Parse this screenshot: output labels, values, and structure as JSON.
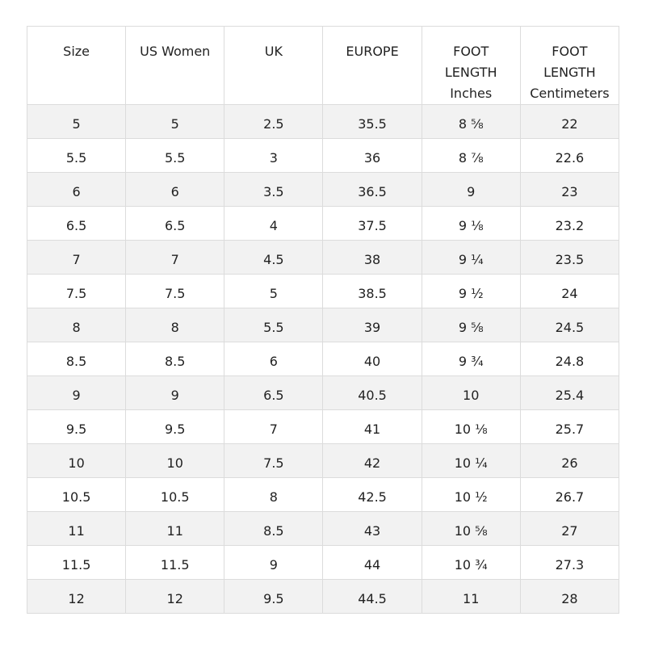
{
  "table": {
    "header": [
      "Size",
      "US Women",
      "UK",
      "EUROPE",
      "FOOT LENGTH Inches",
      "FOOT LENGTH Centimeters"
    ],
    "rows": [
      [
        "5",
        "5",
        "2.5",
        "35.5",
        "8 ⅝",
        "22"
      ],
      [
        "5.5",
        "5.5",
        "3",
        "36",
        "8 ⅞",
        "22.6"
      ],
      [
        "6",
        "6",
        "3.5",
        "36.5",
        "9",
        "23"
      ],
      [
        "6.5",
        "6.5",
        "4",
        "37.5",
        "9 ⅛",
        "23.2"
      ],
      [
        "7",
        "7",
        "4.5",
        "38",
        "9 ¼",
        "23.5"
      ],
      [
        "7.5",
        "7.5",
        "5",
        "38.5",
        "9 ½",
        "24"
      ],
      [
        "8",
        "8",
        "5.5",
        "39",
        "9 ⅝",
        "24.5"
      ],
      [
        "8.5",
        "8.5",
        "6",
        "40",
        "9 ¾",
        "24.8"
      ],
      [
        "9",
        "9",
        "6.5",
        "40.5",
        "10",
        "25.4"
      ],
      [
        "9.5",
        "9.5",
        "7",
        "41",
        "10 ⅛",
        "25.7"
      ],
      [
        "10",
        "10",
        "7.5",
        "42",
        "10 ¼",
        "26"
      ],
      [
        "10.5",
        "10.5",
        "8",
        "42.5",
        "10 ½",
        "26.7"
      ],
      [
        "11",
        "11",
        "8.5",
        "43",
        "10 ⅝",
        "27"
      ],
      [
        "11.5",
        "11.5",
        "9",
        "44",
        "10 ¾",
        "27.3"
      ],
      [
        "12",
        "12",
        "9.5",
        "44.5",
        "11",
        "28"
      ]
    ]
  }
}
